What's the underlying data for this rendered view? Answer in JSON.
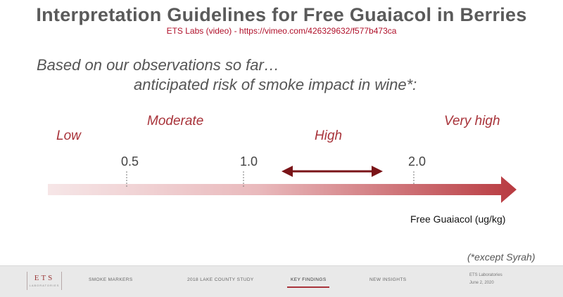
{
  "header": {
    "title": "Interpretation Guidelines for Free Guaiacol in Berries",
    "subtitle": "ETS Labs (video) -  https://vimeo.com/426329632/f577b473ca"
  },
  "statement": {
    "line1": "Based on our observations so far…",
    "line2": "anticipated risk of smoke impact in wine*:"
  },
  "risk_levels": [
    "Low",
    "Moderate",
    "High",
    "Very high"
  ],
  "ticks": [
    "0.5",
    "1.0",
    "2.0"
  ],
  "axis_label": "Free Guaiacol (ug/kg)",
  "footnote": "(*except Syrah)",
  "colors": {
    "accent": "#a8333a",
    "bar_start": "#f4e1e2",
    "bar_end": "#b83a40"
  },
  "footer": {
    "logo": "ETS",
    "logo_sub": "LABORATORIES",
    "nav": [
      "SMOKE MARKERS",
      "2018 LAKE COUNTY STUDY",
      "KEY FINDINGS",
      "NEW INSIGHTS"
    ],
    "active_nav": "KEY FINDINGS",
    "company": "ETS Laboratories",
    "date": "June 2, 2020"
  }
}
